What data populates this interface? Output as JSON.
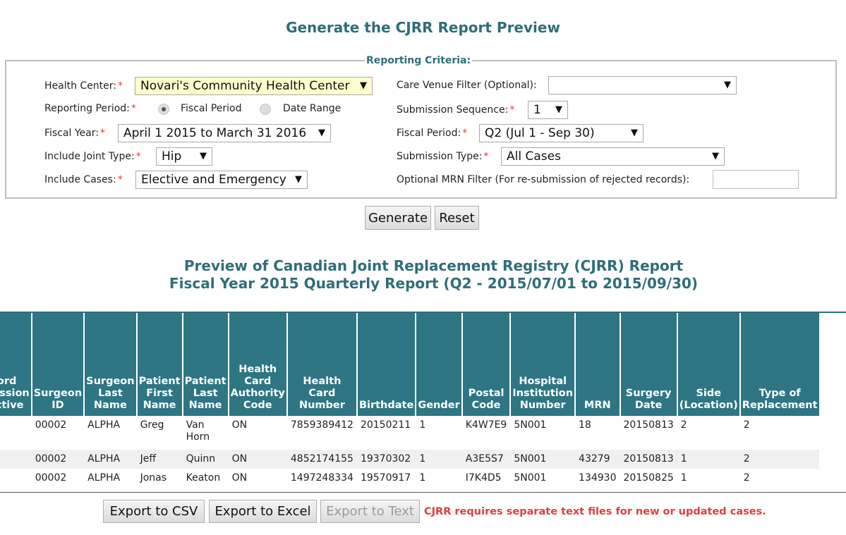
{
  "page_title": "Generate the CJRR Report Preview",
  "criteria": {
    "legend": "Reporting Criteria:",
    "health_center": {
      "label": "Health Center:",
      "value": "Novari's Community Health Center"
    },
    "reporting_period": {
      "label": "Reporting Period:",
      "option_fiscal": "Fiscal Period",
      "option_date": "Date Range",
      "selected": "Fiscal Period"
    },
    "fiscal_year": {
      "label": "Fiscal Year:",
      "value": "April 1 2015 to March 31 2016"
    },
    "joint_type": {
      "label": "Include Joint Type:",
      "value": "Hip"
    },
    "include_cases": {
      "label": "Include Cases:",
      "value": "Elective and Emergency"
    },
    "care_venue": {
      "label": "Care Venue Filter (Optional):",
      "value": ""
    },
    "submission_sequence": {
      "label": "Submission Sequence:",
      "value": "1"
    },
    "fiscal_period": {
      "label": "Fiscal Period:",
      "value": "Q2 (Jul 1 - Sep 30)"
    },
    "submission_type": {
      "label": "Submission Type:",
      "value": "All Cases"
    },
    "mrn_filter": {
      "label": "Optional MRN Filter (For re-submission of rejected records):",
      "value": ""
    },
    "required_mark": "*",
    "arrow": "▼"
  },
  "buttons": {
    "generate": "Generate",
    "reset": "Reset"
  },
  "report": {
    "title_line1": "Preview of Canadian Joint Replacement Registry (CJRR) Report",
    "title_line2": "Fiscal Year 2015 Quarterly Report (Q2 - 2015/07/01 to 2015/09/30)"
  },
  "table": {
    "headers": [
      "Record Submission Objective",
      "Surgeon ID",
      "Surgeon Last Name",
      "Patient First Name",
      "Patient Last Name",
      "Health Card Authority Code",
      "Health Card Number",
      "Birthdate",
      "Gender",
      "Postal Code",
      "Hospital Institution Number",
      "MRN",
      "Surgery Date",
      "Side (Location)",
      "Type of Replacement"
    ],
    "rows": [
      [
        "",
        "00002",
        "ALPHA",
        "Greg",
        "Van Horn",
        "ON",
        "7859389412",
        "20150211",
        "1",
        "K4W7E9",
        "5N001",
        "18",
        "20150813",
        "2",
        "2"
      ],
      [
        "",
        "00002",
        "ALPHA",
        "Jeff",
        "Quinn",
        "ON",
        "4852174155",
        "19370302",
        "1",
        "A3E5S7",
        "5N001",
        "43279",
        "20150813",
        "1",
        "2"
      ],
      [
        "",
        "00002",
        "ALPHA",
        "Jonas",
        "Keaton",
        "ON",
        "1497248334",
        "19570917",
        "1",
        "I7K4D5",
        "5N001",
        "134930",
        "20150825",
        "1",
        "2"
      ]
    ]
  },
  "export": {
    "csv": "Export to CSV",
    "excel": "Export to Excel",
    "text": "Export to Text",
    "note": "CJRR requires separate text files for new or updated cases."
  },
  "colors": {
    "accent": "#2e6e78",
    "header_bg": "#2e7684",
    "required": "#e53b3b",
    "highlight": "#ffffcc"
  }
}
